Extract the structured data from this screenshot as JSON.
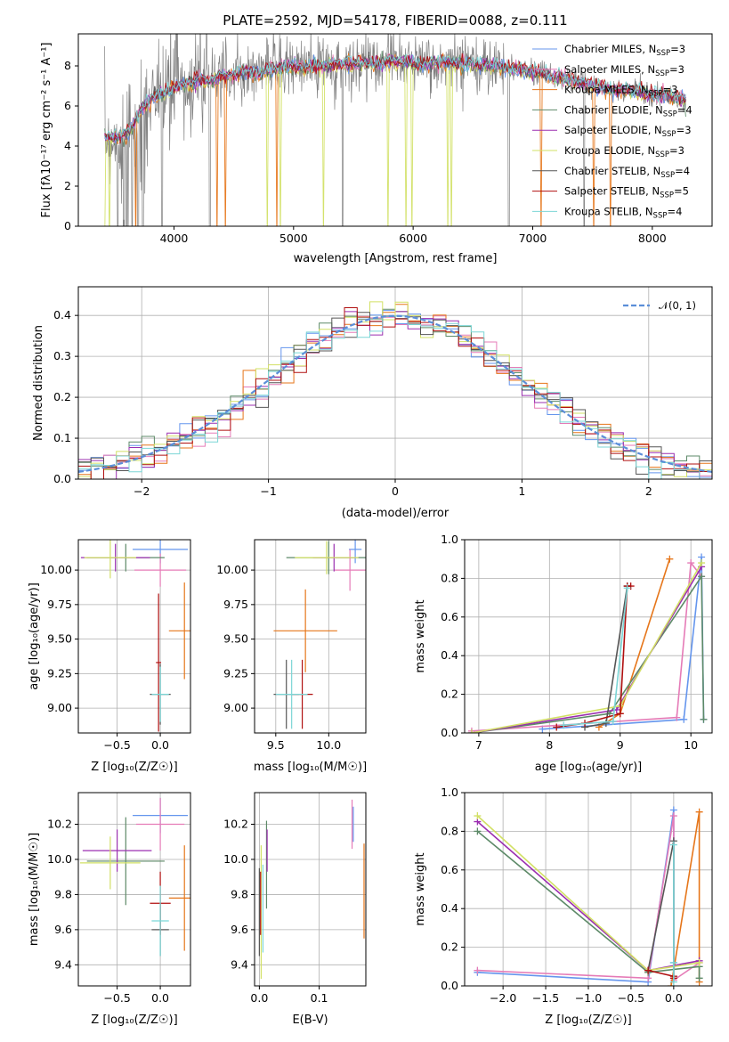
{
  "colors": [
    "#6495ED",
    "#E57BB7",
    "#E6761A",
    "#5D8A68",
    "#9B2FB0",
    "#D2E065",
    "#555555",
    "#B01010",
    "#7BD6D6"
  ],
  "chart_data": [
    {
      "id": "spectrum",
      "type": "line",
      "title": "PLATE=2592, MJD=54178, FIBERID=0088, z=0.111",
      "xlabel": "wavelength [Angstrom, rest frame]",
      "ylabel": "Flux [fλ10⁻¹⁷ erg cm⁻² s⁻¹ A⁻¹]",
      "xlim": [
        3200,
        8500
      ],
      "ylim": [
        0,
        9.6
      ],
      "xticks": [
        "4000",
        "5000",
        "6000",
        "7000",
        "8000"
      ],
      "yticks": [
        "0",
        "2",
        "4",
        "6",
        "8"
      ],
      "legend_position": "right",
      "legend": [
        {
          "label": "Chabrier MILES, N",
          "sub": "SSP",
          "tail": "=3"
        },
        {
          "label": "Salpeter MILES, N",
          "sub": "SSP",
          "tail": "=3"
        },
        {
          "label": "Kroupa MILES, N",
          "sub": "SSP",
          "tail": "=3"
        },
        {
          "label": "Chabrier ELODIE, N",
          "sub": "SSP",
          "tail": "=4"
        },
        {
          "label": "Salpeter ELODIE, N",
          "sub": "SSP",
          "tail": "=3"
        },
        {
          "label": "Kroupa ELODIE, N",
          "sub": "SSP",
          "tail": "=3"
        },
        {
          "label": "Chabrier STELIB, N",
          "sub": "SSP",
          "tail": "=4"
        },
        {
          "label": "Salpeter STELIB, N",
          "sub": "SSP",
          "tail": "=5"
        },
        {
          "label": "Kroupa STELIB, N",
          "sub": "SSP",
          "tail": "=4"
        }
      ],
      "continuum": {
        "x": [
          3420,
          3500,
          3600,
          3650,
          3700,
          3800,
          3900,
          4000,
          4100,
          4200,
          4300,
          4400,
          4500,
          4600,
          4700,
          4800,
          4900,
          5000,
          5100,
          5200,
          5300,
          5400,
          5500,
          5600,
          5700,
          5800,
          5900,
          6000,
          6100,
          6200,
          6300,
          6400,
          6500,
          6600,
          6700,
          6800,
          6900,
          7000,
          7100,
          7200,
          7300,
          7400,
          7500,
          7600,
          7700,
          7800,
          7900,
          8000,
          8100,
          8200,
          8280
        ],
        "y": [
          4.5,
          4.4,
          4.6,
          5.0,
          5.6,
          6.3,
          6.6,
          6.9,
          7.1,
          7.3,
          7.2,
          7.5,
          7.6,
          7.7,
          7.6,
          7.8,
          7.9,
          8.0,
          7.9,
          8.0,
          8.0,
          8.1,
          8.1,
          8.2,
          8.1,
          8.2,
          8.2,
          8.2,
          8.1,
          8.2,
          8.2,
          8.1,
          8.1,
          8.0,
          8.0,
          7.9,
          7.8,
          7.7,
          7.6,
          7.4,
          7.3,
          7.2,
          7.0,
          6.9,
          6.8,
          6.8,
          6.7,
          6.6,
          6.5,
          6.4,
          6.3
        ]
      },
      "data_noise_amplitude": 1.2,
      "absorption_drops": [
        3530,
        3580,
        3650,
        3700,
        3740,
        3900,
        4300,
        5410,
        6800,
        7430
      ]
    },
    {
      "id": "residuals",
      "type": "histogram",
      "xlabel": "(data-model)/error",
      "ylabel": "Normed distribution",
      "xlim": [
        -2.5,
        2.5
      ],
      "ylim": [
        0,
        0.47
      ],
      "xticks": [
        "−2",
        "−1",
        "0",
        "1",
        "2"
      ],
      "yticks": [
        "0.0",
        "0.1",
        "0.2",
        "0.3",
        "0.4"
      ],
      "bin_width": 0.1,
      "reference": {
        "label": "𝒩(0, 1)",
        "mu": 0,
        "sigma": 1
      },
      "legend_position": "upper right"
    },
    {
      "id": "age-vs-Z",
      "type": "errorbar",
      "xlabel": "Z [log₁₀(Z/Z☉)]",
      "ylabel": "age  [log₁₀(age/yr)]",
      "xlim": [
        -0.95,
        0.35
      ],
      "ylim": [
        8.82,
        10.22
      ],
      "xticks": [
        -0.5,
        0.0
      ],
      "yticks": [
        9.0,
        9.25,
        9.5,
        9.75,
        10.0
      ],
      "points": [
        {
          "x": 0.0,
          "y": 10.15,
          "xerr": 0.32,
          "yerr": 0.1,
          "c": 0
        },
        {
          "x": 0.0,
          "y": 10.0,
          "xerr": 0.3,
          "yerr": 0.12,
          "c": 1
        },
        {
          "x": 0.28,
          "y": 9.56,
          "xerr": 0.18,
          "yerr": 0.35,
          "c": 2
        },
        {
          "x": -0.4,
          "y": 10.09,
          "xerr": 0.45,
          "yerr": 0.1,
          "c": 3
        },
        {
          "x": -0.52,
          "y": 10.09,
          "xerr": 0.4,
          "yerr": 0.1,
          "c": 4
        },
        {
          "x": -0.58,
          "y": 10.09,
          "xerr": 0.3,
          "yerr": 0.15,
          "c": 5
        },
        {
          "x": 0.0,
          "y": 9.1,
          "xerr": 0.12,
          "yerr": 0.22,
          "c": 6
        },
        {
          "x": -0.02,
          "y": 9.33,
          "xerr": 0.03,
          "yerr": 0.5,
          "c": 7
        },
        {
          "x": 0.0,
          "y": 9.1,
          "xerr": 0.1,
          "yerr": 0.2,
          "c": 8
        }
      ]
    },
    {
      "id": "age-vs-mass",
      "type": "errorbar",
      "xlabel": "mass [log₁₀(M/M☉)]",
      "ylabel": "",
      "xlim": [
        9.3,
        10.35
      ],
      "ylim": [
        8.82,
        10.22
      ],
      "xticks": [
        9.5,
        10.0
      ],
      "yticks": [
        9.0,
        9.25,
        9.5,
        9.75,
        10.0
      ],
      "points": [
        {
          "x": 10.25,
          "y": 10.15,
          "xerr": 0.06,
          "yerr": 0.1,
          "c": 0
        },
        {
          "x": 10.2,
          "y": 10.0,
          "xerr": 0.15,
          "yerr": 0.15,
          "c": 1
        },
        {
          "x": 9.78,
          "y": 9.56,
          "xerr": 0.3,
          "yerr": 0.3,
          "c": 2
        },
        {
          "x": 10.0,
          "y": 10.09,
          "xerr": 0.4,
          "yerr": 0.12,
          "c": 3
        },
        {
          "x": 10.05,
          "y": 10.09,
          "xerr": 0.2,
          "yerr": 0.1,
          "c": 4
        },
        {
          "x": 9.98,
          "y": 10.09,
          "xerr": 0.3,
          "yerr": 0.12,
          "c": 5
        },
        {
          "x": 9.6,
          "y": 9.1,
          "xerr": 0.12,
          "yerr": 0.25,
          "c": 6
        },
        {
          "x": 9.75,
          "y": 9.1,
          "xerr": 0.1,
          "yerr": 0.25,
          "c": 7
        },
        {
          "x": 9.65,
          "y": 9.1,
          "xerr": 0.15,
          "yerr": 0.25,
          "c": 8
        }
      ]
    },
    {
      "id": "massweight-vs-age",
      "type": "line",
      "xlabel": "age  [log₁₀(age/yr)]",
      "ylabel": "mass weight",
      "xlim": [
        6.8,
        10.3
      ],
      "ylim": [
        0,
        1.0
      ],
      "xticks": [
        7,
        8,
        9,
        10
      ],
      "yticks": [
        0.0,
        0.2,
        0.4,
        0.6,
        0.8,
        1.0
      ],
      "series": [
        {
          "c": 0,
          "x": [
            7.9,
            9.9,
            10.15,
            10.18
          ],
          "y": [
            0.02,
            0.07,
            0.91,
            0.07
          ]
        },
        {
          "c": 1,
          "x": [
            6.9,
            9.8,
            10.0,
            10.15
          ],
          "y": [
            0.01,
            0.08,
            0.88,
            0.81
          ]
        },
        {
          "c": 2,
          "x": [
            8.7,
            9.0,
            9.7
          ],
          "y": [
            0.03,
            0.1,
            0.9
          ]
        },
        {
          "c": 3,
          "x": [
            6.9,
            8.85,
            10.15,
            10.18
          ],
          "y": [
            0.0,
            0.1,
            0.81,
            0.07
          ]
        },
        {
          "c": 4,
          "x": [
            6.9,
            8.95,
            10.15
          ],
          "y": [
            0.0,
            0.12,
            0.86
          ]
        },
        {
          "c": 5,
          "x": [
            6.9,
            9.0,
            10.15
          ],
          "y": [
            0.0,
            0.14,
            0.88
          ]
        },
        {
          "c": 6,
          "x": [
            8.5,
            8.8,
            9.1
          ],
          "y": [
            0.03,
            0.05,
            0.76
          ]
        },
        {
          "c": 7,
          "x": [
            8.1,
            8.5,
            9.0,
            9.1,
            9.15
          ],
          "y": [
            0.03,
            0.05,
            0.1,
            0.76,
            0.76
          ]
        },
        {
          "c": 8,
          "x": [
            8.2,
            8.9,
            9.1
          ],
          "y": [
            0.04,
            0.06,
            0.75
          ]
        }
      ]
    },
    {
      "id": "mass-vs-Z",
      "type": "errorbar",
      "xlabel": "Z [log₁₀(Z/Z☉)]",
      "ylabel": "mass [log₁₀(M/M☉)]",
      "xlim": [
        -0.95,
        0.35
      ],
      "ylim": [
        9.28,
        10.38
      ],
      "xticks": [
        -0.5,
        0.0
      ],
      "yticks": [
        9.4,
        9.6,
        9.8,
        10.0,
        10.2
      ],
      "points": [
        {
          "x": 0.0,
          "y": 10.25,
          "xerr": 0.32,
          "yerr": 0.1,
          "c": 0
        },
        {
          "x": 0.0,
          "y": 10.2,
          "xerr": 0.28,
          "yerr": 0.15,
          "c": 1
        },
        {
          "x": 0.28,
          "y": 9.78,
          "xerr": 0.18,
          "yerr": 0.3,
          "c": 2
        },
        {
          "x": -0.4,
          "y": 9.99,
          "xerr": 0.45,
          "yerr": 0.25,
          "c": 3
        },
        {
          "x": -0.5,
          "y": 10.05,
          "xerr": 0.4,
          "yerr": 0.12,
          "c": 4
        },
        {
          "x": -0.58,
          "y": 9.98,
          "xerr": 0.35,
          "yerr": 0.15,
          "c": 5
        },
        {
          "x": 0.0,
          "y": 9.6,
          "xerr": 0.1,
          "yerr": 0.15,
          "c": 6
        },
        {
          "x": 0.0,
          "y": 9.75,
          "xerr": 0.12,
          "yerr": 0.18,
          "c": 7
        },
        {
          "x": 0.0,
          "y": 9.65,
          "xerr": 0.1,
          "yerr": 0.2,
          "c": 8
        }
      ]
    },
    {
      "id": "mass-vs-ebv",
      "type": "errorbar",
      "xlabel": "E(B-V)",
      "ylabel": "",
      "xlim": [
        -0.008,
        0.178
      ],
      "ylim": [
        9.28,
        10.38
      ],
      "xticks": [
        0.0,
        0.1
      ],
      "yticks": [
        9.4,
        9.6,
        9.8,
        10.0,
        10.2
      ],
      "points": [
        {
          "x": 0.157,
          "y": 10.2,
          "xerr": 0,
          "yerr": 0.1,
          "c": 0
        },
        {
          "x": 0.155,
          "y": 10.2,
          "xerr": 0,
          "yerr": 0.14,
          "c": 1
        },
        {
          "x": 0.175,
          "y": 9.82,
          "xerr": 0,
          "yerr": 0.27,
          "c": 2
        },
        {
          "x": 0.012,
          "y": 9.97,
          "xerr": 0,
          "yerr": 0.25,
          "c": 3
        },
        {
          "x": 0.013,
          "y": 10.05,
          "xerr": 0,
          "yerr": 0.12,
          "c": 4
        },
        {
          "x": 0.003,
          "y": 9.7,
          "xerr": 0,
          "yerr": 0.38,
          "c": 5
        },
        {
          "x": 0.0,
          "y": 9.7,
          "xerr": 0,
          "yerr": 0.25,
          "c": 6
        },
        {
          "x": 0.002,
          "y": 9.75,
          "xerr": 0,
          "yerr": 0.18,
          "c": 7
        },
        {
          "x": 0.006,
          "y": 9.72,
          "xerr": 0,
          "yerr": 0.25,
          "c": 8
        }
      ]
    },
    {
      "id": "massweight-vs-Z",
      "type": "line",
      "xlabel": "Z [log₁₀(Z/Z☉)]",
      "ylabel": "mass weight",
      "xlim": [
        -2.45,
        0.45
      ],
      "ylim": [
        0,
        1.0
      ],
      "xticks": [
        -2.0,
        -1.5,
        -1.0,
        -0.5,
        0.0
      ],
      "yticks": [
        0.0,
        0.2,
        0.4,
        0.6,
        0.8,
        1.0
      ],
      "series": [
        {
          "c": 0,
          "x": [
            -2.3,
            -0.3,
            0.0,
            0.0
          ],
          "y": [
            0.07,
            0.02,
            0.91,
            0.12
          ]
        },
        {
          "c": 1,
          "x": [
            -2.3,
            -0.3,
            0.0,
            0.0,
            0.3
          ],
          "y": [
            0.08,
            0.04,
            0.88,
            0.03,
            0.12
          ]
        },
        {
          "c": 2,
          "x": [
            -0.03,
            0.3,
            0.3
          ],
          "y": [
            0.0,
            0.9,
            0.02
          ]
        },
        {
          "c": 3,
          "x": [
            -2.3,
            -0.3,
            0.3,
            0.3
          ],
          "y": [
            0.8,
            0.07,
            0.1,
            0.04
          ]
        },
        {
          "c": 4,
          "x": [
            -2.3,
            -0.3,
            0.3
          ],
          "y": [
            0.85,
            0.08,
            0.13
          ]
        },
        {
          "c": 5,
          "x": [
            -2.3,
            -0.3,
            0.3
          ],
          "y": [
            0.88,
            0.08,
            0.12
          ]
        },
        {
          "c": 6,
          "x": [
            -0.3,
            0.0,
            0.0
          ],
          "y": [
            0.08,
            0.75,
            0.05
          ]
        },
        {
          "c": 7,
          "x": [
            -0.3,
            0.0,
            0.0
          ],
          "y": [
            0.08,
            0.05,
            0.04
          ]
        },
        {
          "c": 8,
          "x": [
            0.0,
            0.0,
            0.0
          ],
          "y": [
            0.02,
            0.73,
            0.12
          ]
        }
      ]
    }
  ]
}
